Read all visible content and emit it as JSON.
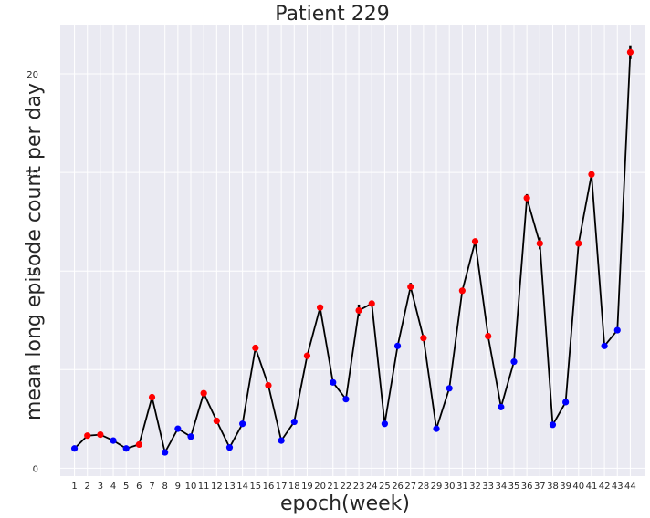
{
  "chart_data": {
    "type": "line",
    "title": "Patient 229",
    "xlabel": "epoch(week)",
    "ylabel": "mean long episode count per day",
    "x": [
      1,
      2,
      3,
      4,
      5,
      6,
      7,
      8,
      9,
      10,
      11,
      12,
      13,
      14,
      15,
      16,
      17,
      18,
      19,
      20,
      21,
      22,
      23,
      24,
      25,
      26,
      27,
      28,
      29,
      30,
      31,
      32,
      33,
      34,
      35,
      36,
      37,
      38,
      39,
      40,
      41,
      42,
      43,
      44
    ],
    "x_tick_labels": [
      "1",
      "2",
      "3",
      "4",
      "5",
      "6",
      "7",
      "8",
      "9",
      "10",
      "11",
      "12",
      "13",
      "14",
      "15",
      "16",
      "17",
      "18",
      "19",
      "20",
      "21",
      "22",
      "23",
      "24",
      "25",
      "26",
      "27",
      "28",
      "29",
      "30",
      "31",
      "32",
      "33",
      "34",
      "35",
      "36",
      "37",
      "38",
      "39",
      "40",
      "41",
      "42",
      "43",
      "44"
    ],
    "series": [
      {
        "values": [
          1.0,
          1.65,
          1.7,
          1.4,
          1.0,
          1.2,
          3.6,
          0.8,
          2.0,
          1.6,
          3.8,
          2.4,
          1.05,
          2.25,
          6.1,
          4.2,
          1.4,
          2.35,
          5.7,
          8.15,
          4.35,
          3.5,
          8.0,
          8.35,
          2.25,
          6.2,
          9.2,
          6.6,
          2.0,
          4.05,
          9.0,
          11.5,
          6.7,
          3.1,
          5.4,
          13.7,
          11.4,
          2.2,
          3.35,
          11.4,
          14.9,
          6.2,
          7.0,
          21.1
        ],
        "errors": [
          0,
          0,
          0,
          0,
          0,
          0,
          0,
          0,
          0,
          0,
          0,
          0,
          0,
          0,
          0,
          0,
          0,
          0,
          0,
          0,
          0,
          0,
          0.3,
          0.15,
          0,
          0,
          0.2,
          0,
          0,
          0,
          0,
          0.12,
          0,
          0,
          0,
          0.2,
          0.3,
          0,
          0,
          0,
          0.15,
          0,
          0,
          0.35
        ],
        "point_colors": [
          "blue",
          "red",
          "red",
          "blue",
          "blue",
          "red",
          "red",
          "blue",
          "blue",
          "blue",
          "red",
          "red",
          "blue",
          "blue",
          "red",
          "red",
          "blue",
          "blue",
          "red",
          "red",
          "blue",
          "blue",
          "red",
          "red",
          "blue",
          "blue",
          "red",
          "red",
          "blue",
          "blue",
          "red",
          "red",
          "red",
          "blue",
          "blue",
          "red",
          "red",
          "blue",
          "blue",
          "red",
          "red",
          "blue",
          "blue",
          "red"
        ]
      }
    ],
    "y_ticks": [
      0,
      5,
      10,
      15,
      20
    ],
    "ylim": [
      -0.4,
      22.5
    ],
    "xlim": [
      -0.1,
      45.1
    ],
    "grid": true,
    "colors": {
      "background": "#eaeaf2",
      "grid": "#ffffff",
      "line": "#000000",
      "blue": "#0000ff",
      "red": "#ff0000"
    }
  }
}
